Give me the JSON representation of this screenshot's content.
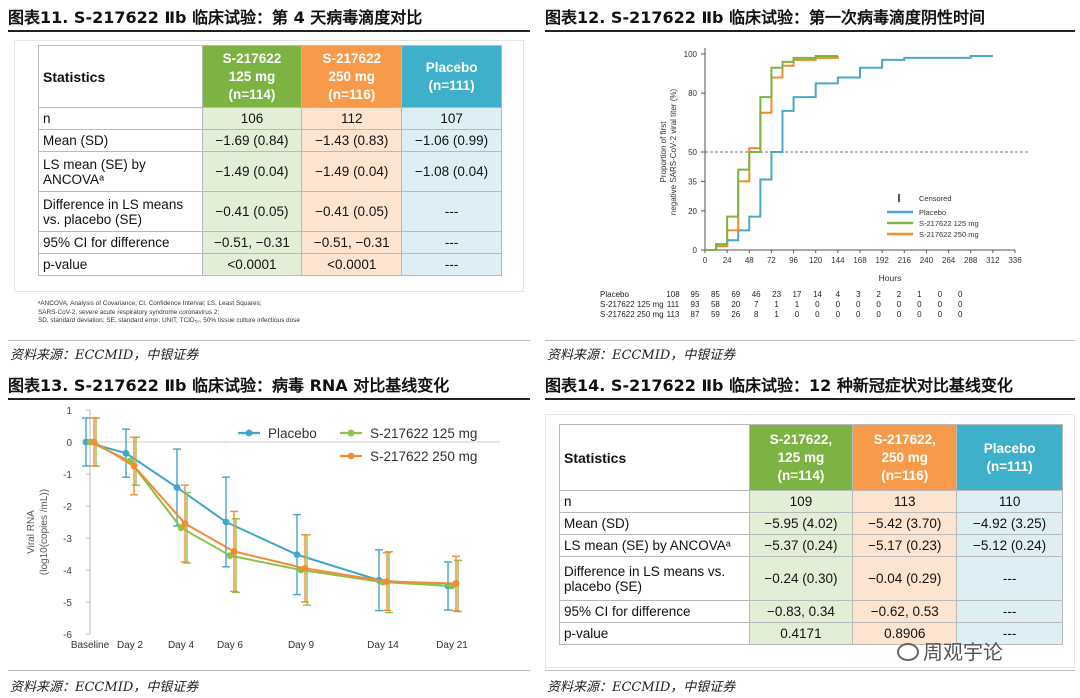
{
  "fig11": {
    "title": "图表11. S-217622 Ⅱb 临床试验：第 4 天病毒滴度对比",
    "col_label": "Statistics",
    "headers": [
      "S-217622\n125 mg\n(n=114)",
      "S-217622\n250 mg\n(n=116)",
      "Placebo\n(n=111)"
    ],
    "rows": [
      {
        "label": "n",
        "v": [
          "106",
          "112",
          "107"
        ]
      },
      {
        "label": "Mean (SD)",
        "v": [
          "−1.69 (0.84)",
          "−1.43 (0.83)",
          "−1.06 (0.99)"
        ]
      },
      {
        "label": "LS mean (SE) by ANCOVAᵃ",
        "v": [
          "−1.49 (0.04)",
          "−1.49 (0.04)",
          "−1.08 (0.04)"
        ]
      },
      {
        "label": "Difference in LS means vs. placebo (SE)",
        "v": [
          "−0.41 (0.05)",
          "−0.41 (0.05)",
          "---"
        ]
      },
      {
        "label": "95% CI for difference",
        "v": [
          "−0.51, −0.31",
          "−0.51, −0.31",
          "---"
        ]
      },
      {
        "label": "p-value",
        "v": [
          "<0.0001",
          "<0.0001",
          "---"
        ]
      }
    ],
    "footnote": "ᵃANCOVA, Analysis of Covariance; CI, Confidence Interval; LS, Least Squares;\nSARS-CoV-2, severe acute respiratory syndrome coronavirus 2;\nSD, standard deviation; SE, standard error; UNIT, TCID₅₀, 50% tissue culture infectious dose",
    "source": "资料来源：ECCMID，中银证券"
  },
  "fig12": {
    "title": "图表12. S-217622 Ⅱb 临床试验：第一次病毒滴度阴性时间",
    "source": "资料来源：ECCMID，中银证券",
    "chart_data": {
      "type": "line",
      "title": "",
      "xlabel": "Hours",
      "ylabel": "Proportion of first negative SARS-CoV-2 viral titer (%)",
      "xlim": [
        0,
        336
      ],
      "ylim": [
        0,
        100
      ],
      "x_ticks": [
        0,
        24,
        48,
        72,
        96,
        120,
        144,
        168,
        192,
        216,
        240,
        264,
        288,
        312,
        336
      ],
      "y_ticks": [
        0,
        20,
        35,
        50,
        80,
        100
      ],
      "reference_line_y": 50,
      "legend": [
        "Censored",
        "Placebo",
        "S-217622 125 mg",
        "S-217622 250 mg"
      ],
      "series": [
        {
          "name": "Placebo",
          "color": "#4aa8c7",
          "x": [
            0,
            12,
            24,
            36,
            48,
            60,
            72,
            84,
            96,
            120,
            144,
            168,
            192,
            216,
            240,
            288,
            312
          ],
          "y": [
            0,
            2,
            5,
            10,
            17,
            36,
            50,
            71,
            78,
            85,
            88,
            93,
            97,
            98,
            98,
            99,
            99
          ]
        },
        {
          "name": "S-217622 125 mg",
          "color": "#7cb342",
          "x": [
            0,
            12,
            24,
            36,
            48,
            60,
            72,
            84,
            96,
            120,
            144
          ],
          "y": [
            0,
            3,
            17,
            41,
            50,
            78,
            93,
            96,
            98,
            99,
            99
          ]
        },
        {
          "name": "S-217622 250 mg",
          "color": "#f28c28",
          "x": [
            0,
            12,
            24,
            36,
            48,
            60,
            72,
            84,
            96,
            120,
            144
          ],
          "y": [
            0,
            2,
            10,
            35,
            52,
            70,
            88,
            94,
            97,
            98,
            99
          ]
        }
      ],
      "risk_table": {
        "rows": [
          {
            "label": "Placebo",
            "n": "108",
            "v": [
              "95",
              "85",
              "69",
              "46",
              "23",
              "17",
              "14",
              "4",
              "3",
              "2",
              "2",
              "1",
              "0",
              "0"
            ]
          },
          {
            "label": "S-217622 125 mg",
            "n": "111",
            "v": [
              "93",
              "58",
              "20",
              "7",
              "1",
              "1",
              "0",
              "0",
              "0",
              "0",
              "0",
              "0",
              "0",
              "0"
            ]
          },
          {
            "label": "S-217622 250 mg",
            "n": "113",
            "v": [
              "87",
              "59",
              "26",
              "8",
              "1",
              "0",
              "0",
              "0",
              "0",
              "0",
              "0",
              "0",
              "0",
              "0"
            ]
          }
        ]
      }
    }
  },
  "fig13": {
    "title": "图表13. S-217622 Ⅱb 临床试验：病毒 RNA 对比基线变化",
    "source": "资料来源：ECCMID，中银证券",
    "chart_data": {
      "type": "line",
      "title": "",
      "xlabel": "",
      "ylabel": "Viral RNA (log10(copies /mL))",
      "ylim": [
        -6,
        1
      ],
      "y_ticks": [
        1,
        0,
        -1,
        -2,
        -3,
        -4,
        -5,
        -6
      ],
      "categories": [
        "Baseline",
        "Day 2",
        "Day 4",
        "Day 6",
        "Day 9",
        "Day 14",
        "Day 21"
      ],
      "legend_position": "top",
      "series": [
        {
          "name": "Placebo",
          "color": "#3ea8cc",
          "values": [
            0,
            -0.35,
            -1.42,
            -2.5,
            -3.52,
            -4.32,
            -4.5
          ],
          "err": [
            0.75,
            0.75,
            1.2,
            1.4,
            1.25,
            0.95,
            0.75
          ]
        },
        {
          "name": "S-217622 125 mg",
          "color": "#8bc34a",
          "values": [
            0,
            -0.6,
            -2.68,
            -3.55,
            -4.0,
            -4.38,
            -4.5
          ],
          "err": [
            0.75,
            0.75,
            1.1,
            1.15,
            1.1,
            0.95,
            0.8
          ]
        },
        {
          "name": "S-217622 250 mg",
          "color": "#f58a35",
          "values": [
            0,
            -0.75,
            -2.55,
            -3.42,
            -3.95,
            -4.36,
            -4.42
          ],
          "err": [
            0.75,
            0.9,
            1.2,
            1.25,
            1.05,
            0.9,
            0.85
          ]
        }
      ]
    }
  },
  "fig14": {
    "title": "图表14. S-217622 Ⅱb 临床试验：12 种新冠症状对比基线变化",
    "col_label": "Statistics",
    "headers": [
      "S-217622,\n125 mg\n(n=114)",
      "S-217622,\n250 mg\n(n=116)",
      "Placebo\n(n=111)"
    ],
    "rows": [
      {
        "label": "n",
        "v": [
          "109",
          "113",
          "110"
        ]
      },
      {
        "label": "Mean (SD)",
        "v": [
          "−5.95 (4.02)",
          "−5.42 (3.70)",
          "−4.92 (3.25)"
        ]
      },
      {
        "label": "LS mean (SE) by ANCOVAᵃ",
        "v": [
          "−5.37 (0.24)",
          "−5.17 (0.23)",
          "−5.12 (0.24)"
        ]
      },
      {
        "label": "Difference in LS means vs. placebo (SE)",
        "v": [
          "−0.24 (0.30)",
          "−0.04 (0.29)",
          "---"
        ]
      },
      {
        "label": "95% CI for difference",
        "v": [
          "−0.83, 0.34",
          "−0.62, 0.53",
          "---"
        ]
      },
      {
        "label": "p-value",
        "v": [
          "0.4171",
          "0.8906",
          "---"
        ]
      }
    ],
    "watermark": "周观宇论",
    "source": "资料来源：ECCMID，中银证券"
  }
}
